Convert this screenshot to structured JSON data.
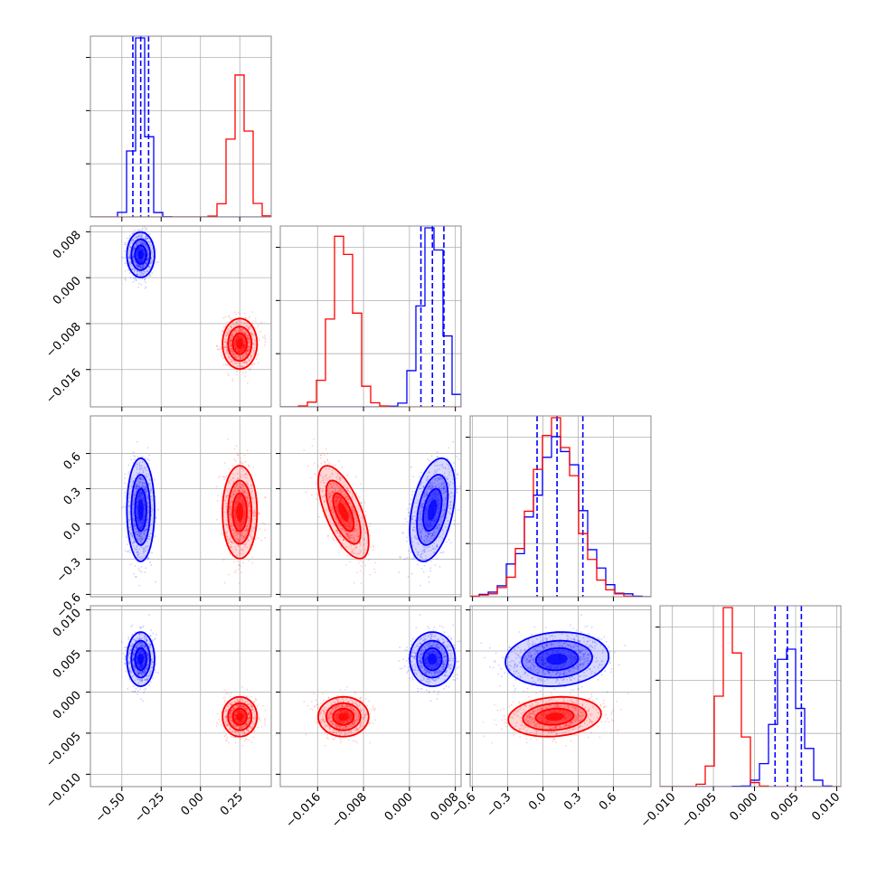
{
  "colors": {
    "blue": "#0000ff",
    "red": "#ff0000",
    "grid": "#b0b0b0",
    "frame": "#888888"
  },
  "chart_data": {
    "type": "corner",
    "grid": true,
    "parameters": [
      {
        "range": [
          -0.7,
          0.45
        ],
        "ticks": [
          "−0.50",
          "−0.25",
          "0.00",
          "0.25"
        ],
        "tick_values": [
          -0.5,
          -0.25,
          0.0,
          0.25
        ]
      },
      {
        "range": [
          -0.0225,
          0.009
        ],
        "ticks": [
          "−0.016",
          "−0.008",
          "0.000",
          "0.008"
        ],
        "tick_values": [
          -0.016,
          -0.008,
          0.0,
          0.008
        ]
      },
      {
        "range": [
          -0.62,
          0.92
        ],
        "ticks": [
          "−0.6",
          "−0.3",
          "0.0",
          "0.3",
          "0.6"
        ],
        "tick_values": [
          -0.6,
          -0.3,
          0.0,
          0.3,
          0.6
        ]
      },
      {
        "range": [
          -0.0115,
          0.0105
        ],
        "ticks": [
          "−0.010",
          "−0.005",
          "0.000",
          "0.005",
          "0.010"
        ],
        "tick_values": [
          -0.01,
          -0.005,
          0.0,
          0.005,
          0.01
        ]
      }
    ],
    "series": [
      {
        "color": "blue",
        "mean": [
          -0.38,
          0.004,
          0.12,
          0.004
        ],
        "sd": [
          0.04,
          0.0018,
          0.2,
          0.0015
        ],
        "corr": [
          [
            1,
            0,
            0,
            0
          ],
          [
            0,
            1,
            0.4,
            0
          ],
          [
            0,
            0.4,
            1,
            0.1
          ],
          [
            0,
            0,
            0.1,
            1
          ]
        ],
        "quantiles": [
          [
            -0.43,
            -0.38,
            -0.33
          ],
          [
            0.002,
            0.004,
            0.006
          ],
          [
            -0.05,
            0.12,
            0.34
          ],
          [
            0.0025,
            0.004,
            0.0057
          ]
        ]
      },
      {
        "color": "red",
        "mean": [
          0.25,
          -0.0115,
          0.1,
          -0.003
        ],
        "sd": [
          0.05,
          0.002,
          0.18,
          0.0011
        ],
        "corr": [
          [
            1,
            0,
            0,
            0
          ],
          [
            0,
            1,
            -0.65,
            0
          ],
          [
            0,
            -0.65,
            1,
            0.15
          ],
          [
            0,
            0,
            0.15,
            1
          ]
        ],
        "quantiles": null
      }
    ]
  }
}
